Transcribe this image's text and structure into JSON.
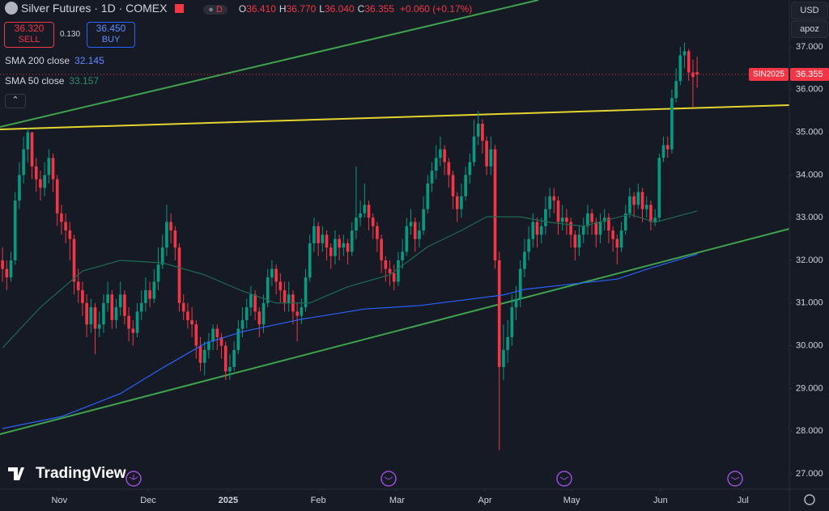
{
  "header": {
    "symbol": "Silver Futures · 1D · COMEX",
    "session": "D",
    "ohlc": [
      {
        "label": "O",
        "value": "36.410"
      },
      {
        "label": "H",
        "value": "36.770"
      },
      {
        "label": "L",
        "value": "36.040"
      },
      {
        "label": "C",
        "value": "36.355"
      }
    ],
    "change": "+0.060 (+0.17%)"
  },
  "trade": {
    "sell_price": "36.320",
    "sell": "SELL",
    "spread": "0.130",
    "buy_price": "36.450",
    "buy": "BUY"
  },
  "toolbar": {
    "currency": "USD",
    "scale": "apoz"
  },
  "brand": "TradingView",
  "chart_data": {
    "type": "candlestick",
    "up_color": "#089981",
    "down_color": "#f23645",
    "grid": false,
    "last_label": "SIN2025",
    "open": [
      32.0,
      31.8,
      31.6,
      32.0,
      33.4,
      34.0,
      34.6,
      35.0,
      34.2,
      33.9,
      33.7,
      34.0,
      34.4,
      33.9,
      33.1,
      32.9,
      32.7,
      32.5,
      31.5,
      31.3,
      31.0,
      30.5,
      30.9,
      30.4,
      30.5,
      31.0,
      31.2,
      30.6,
      30.9,
      31.2,
      30.7,
      30.4,
      30.3,
      30.8,
      31.0,
      31.3,
      31.1,
      31.5,
      31.9,
      32.3,
      32.9,
      32.7,
      32.3,
      31.0,
      30.8,
      30.6,
      30.5,
      30.0,
      29.6,
      29.9,
      30.1,
      30.4,
      30.2,
      30.0,
      29.4,
      29.5,
      29.9,
      30.4,
      30.6,
      30.9,
      31.2,
      30.8,
      30.5,
      31.0,
      31.6,
      31.8,
      31.5,
      31.3,
      31.0,
      31.2,
      30.8,
      30.7,
      30.9,
      31.6,
      32.4,
      32.8,
      32.4,
      32.6,
      32.3,
      32.1,
      32.5,
      32.3,
      32.4,
      32.2,
      32.7,
      33.0,
      33.1,
      33.3,
      33.0,
      32.8,
      32.5,
      32.0,
      31.8,
      31.7,
      31.5,
      32.0,
      32.2,
      32.8,
      32.9,
      32.5,
      32.7,
      33.2,
      33.8,
      34.1,
      34.4,
      34.6,
      34.3,
      34.0,
      33.5,
      33.2,
      33.5,
      34.0,
      34.3,
      34.9,
      35.2,
      34.8,
      34.2,
      34.6,
      32.0,
      29.5,
      29.9,
      30.2,
      30.9,
      31.1,
      31.8,
      32.2,
      32.5,
      32.9,
      32.6,
      32.8,
      33.2,
      33.5,
      33.4,
      32.9,
      33.0,
      32.9,
      32.6,
      32.3,
      32.6,
      32.8,
      33.1,
      32.9,
      32.6,
      32.9,
      33.0,
      32.7,
      32.5,
      32.3,
      32.7,
      33.1,
      33.5,
      33.3,
      33.6,
      33.2,
      33.3,
      32.9,
      33.0,
      34.4,
      34.7,
      34.6,
      35.8,
      36.2,
      36.8,
      36.9,
      36.4,
      36.41
    ],
    "high": [
      32.3,
      32.0,
      32.2,
      33.6,
      34.3,
      34.9,
      35.1,
      35.0,
      34.4,
      34.1,
      34.3,
      34.6,
      34.5,
      34.0,
      33.3,
      33.1,
      32.9,
      32.6,
      31.8,
      31.5,
      31.2,
      31.1,
      31.0,
      30.8,
      31.2,
      31.5,
      31.3,
      31.1,
      31.5,
      31.3,
      30.9,
      30.6,
      31.0,
      31.3,
      31.6,
      31.5,
      31.8,
      32.3,
      32.6,
      33.3,
      33.1,
      32.8,
      32.4,
      31.2,
      31.0,
      30.9,
      30.6,
      30.2,
      30.1,
      30.3,
      30.5,
      30.5,
      30.3,
      30.1,
      29.8,
      30.1,
      30.6,
      30.9,
      31.1,
      31.4,
      31.3,
      30.9,
      31.2,
      31.8,
      32.0,
      31.9,
      31.7,
      31.5,
      31.5,
      31.3,
      31.0,
      31.1,
      31.8,
      32.6,
      33.0,
      32.9,
      32.8,
      32.7,
      32.4,
      32.7,
      32.6,
      32.6,
      32.5,
      32.9,
      34.2,
      33.4,
      33.8,
      33.4,
      33.1,
      32.9,
      32.6,
      32.1,
      32.0,
      31.9,
      32.2,
      32.5,
      33.0,
      33.2,
      33.0,
      32.9,
      33.5,
      34.0,
      34.3,
      34.7,
      34.9,
      34.7,
      34.4,
      34.1,
      33.6,
      33.8,
      34.2,
      34.5,
      35.3,
      35.5,
      35.3,
      34.9,
      34.9,
      34.7,
      32.2,
      30.5,
      30.6,
      31.2,
      31.4,
      32.0,
      32.5,
      32.8,
      33.1,
      33.0,
      33.0,
      33.5,
      33.7,
      33.7,
      33.5,
      33.3,
      33.2,
      33.0,
      32.7,
      32.8,
      33.0,
      33.3,
      33.2,
      33.0,
      33.1,
      33.2,
      33.1,
      32.8,
      32.6,
      32.9,
      33.3,
      33.7,
      33.6,
      33.8,
      33.7,
      33.5,
      33.4,
      33.2,
      34.5,
      34.9,
      34.9,
      36.0,
      36.5,
      37.0,
      37.1,
      36.95,
      36.7,
      36.77
    ],
    "low": [
      31.5,
      31.3,
      31.5,
      31.9,
      33.2,
      33.8,
      34.3,
      33.9,
      33.6,
      33.4,
      33.5,
      33.8,
      33.6,
      32.8,
      32.6,
      32.4,
      32.0,
      31.2,
      31.0,
      30.7,
      30.2,
      30.3,
      29.8,
      30.2,
      30.3,
      30.8,
      30.4,
      30.4,
      30.7,
      30.5,
      30.1,
      30.0,
      30.2,
      30.6,
      30.8,
      30.9,
      31.0,
      31.3,
      31.8,
      32.1,
      32.4,
      32.0,
      30.8,
      30.6,
      30.4,
      30.2,
      29.7,
      29.4,
      29.3,
      29.7,
      29.9,
      29.9,
      29.7,
      29.2,
      29.2,
      29.4,
      29.8,
      30.2,
      30.4,
      30.7,
      30.6,
      30.2,
      30.3,
      30.9,
      31.4,
      31.2,
      31.0,
      30.8,
      30.8,
      30.5,
      30.1,
      30.5,
      30.8,
      31.5,
      32.2,
      32.1,
      32.2,
      32.0,
      31.8,
      31.9,
      32.0,
      32.1,
      31.9,
      32.1,
      32.5,
      32.8,
      33.0,
      32.7,
      32.5,
      32.2,
      31.7,
      31.5,
      31.4,
      31.3,
      31.4,
      31.8,
      32.1,
      32.6,
      32.2,
      32.3,
      32.6,
      33.1,
      33.6,
      33.9,
      34.2,
      34.0,
      33.7,
      33.2,
      32.9,
      33.0,
      33.4,
      33.8,
      34.2,
      34.7,
      34.5,
      34.0,
      34.0,
      31.8,
      27.55,
      29.2,
      29.6,
      30.0,
      30.6,
      30.9,
      31.6,
      32.0,
      32.3,
      32.3,
      32.4,
      32.6,
      33.0,
      33.1,
      32.6,
      32.7,
      32.6,
      32.3,
      32.0,
      32.1,
      32.4,
      32.6,
      32.6,
      32.3,
      32.4,
      32.7,
      32.4,
      32.2,
      31.9,
      32.2,
      32.6,
      33.0,
      33.0,
      33.2,
      32.9,
      33.0,
      32.7,
      32.8,
      32.9,
      34.3,
      34.4,
      34.5,
      35.7,
      36.1,
      36.5,
      36.2,
      35.6,
      36.04
    ],
    "close": [
      31.8,
      31.6,
      32.0,
      33.4,
      34.0,
      34.6,
      35.0,
      34.2,
      33.9,
      33.7,
      34.0,
      34.4,
      33.9,
      33.1,
      32.9,
      32.7,
      32.5,
      31.5,
      31.3,
      31.0,
      30.5,
      30.9,
      30.4,
      30.5,
      31.0,
      31.2,
      30.6,
      30.9,
      31.2,
      30.7,
      30.4,
      30.3,
      30.8,
      31.0,
      31.3,
      31.1,
      31.5,
      31.9,
      32.3,
      32.9,
      32.7,
      32.3,
      31.0,
      30.8,
      30.6,
      30.5,
      30.0,
      29.6,
      29.9,
      30.1,
      30.4,
      30.2,
      30.0,
      29.4,
      29.5,
      29.9,
      30.4,
      30.6,
      30.9,
      31.2,
      30.8,
      30.5,
      31.0,
      31.6,
      31.8,
      31.5,
      31.3,
      31.0,
      31.2,
      30.8,
      30.7,
      30.9,
      31.6,
      32.4,
      32.8,
      32.4,
      32.6,
      32.3,
      32.1,
      32.5,
      32.3,
      32.4,
      32.2,
      32.7,
      33.0,
      33.1,
      33.3,
      33.0,
      32.8,
      32.5,
      32.0,
      31.8,
      31.7,
      31.5,
      32.0,
      32.2,
      32.8,
      32.9,
      32.5,
      32.7,
      33.2,
      33.8,
      34.1,
      34.4,
      34.6,
      34.3,
      34.0,
      33.5,
      33.2,
      33.5,
      34.0,
      34.3,
      34.9,
      35.2,
      34.8,
      34.2,
      34.6,
      32.0,
      29.5,
      29.9,
      30.2,
      30.9,
      31.1,
      31.8,
      32.2,
      32.5,
      32.9,
      32.6,
      32.8,
      33.2,
      33.5,
      33.4,
      32.9,
      33.0,
      32.9,
      32.6,
      32.3,
      32.6,
      32.8,
      33.1,
      32.9,
      32.6,
      32.9,
      33.0,
      32.7,
      32.5,
      32.3,
      32.7,
      33.1,
      33.5,
      33.3,
      33.6,
      33.2,
      33.3,
      32.9,
      33.0,
      34.4,
      34.7,
      34.6,
      35.8,
      36.2,
      36.8,
      36.9,
      36.4,
      36.295,
      36.355
    ],
    "indicators": [
      {
        "name": "SMA 200 close",
        "color": "#2962ff",
        "x": [
          0,
          14,
          28,
          38,
          48,
          57,
          71,
          86,
          99,
          111,
          119,
          124,
          134,
          146,
          153,
          165
        ],
        "values": [
          28.06,
          28.34,
          28.88,
          29.48,
          30.05,
          30.33,
          30.62,
          30.86,
          30.94,
          31.09,
          31.19,
          31.32,
          31.43,
          31.56,
          31.79,
          32.145
        ]
      },
      {
        "name": "SMA 50 close",
        "color": "#1e6b52",
        "x": [
          0,
          9,
          19,
          28,
          38,
          48,
          57,
          65,
          73,
          82,
          92,
          101,
          109,
          115,
          123,
          130,
          138,
          149,
          155,
          165
        ],
        "values": [
          29.95,
          30.9,
          31.75,
          32.0,
          31.94,
          31.66,
          31.28,
          31.0,
          31.0,
          31.38,
          31.66,
          32.32,
          32.7,
          33.02,
          33.02,
          32.89,
          32.8,
          33.08,
          32.89,
          33.157
        ]
      }
    ],
    "xlim": [
      -0.6,
      186.9
    ],
    "xticks": [
      {
        "value": 13.5,
        "label": "Nov"
      },
      {
        "value": 34.6,
        "label": "Dec"
      },
      {
        "value": 53.6,
        "label": "2025"
      },
      {
        "value": 75,
        "label": "Feb"
      },
      {
        "value": 93.7,
        "label": "Mar"
      },
      {
        "value": 114.6,
        "label": "Apr"
      },
      {
        "value": 135.2,
        "label": "May"
      },
      {
        "value": 156.3,
        "label": "Jun"
      },
      {
        "value": 175.9,
        "label": "Jul"
      }
    ],
    "ylim": [
      26.64,
      38.098
    ],
    "yticks": [
      {
        "value": 27,
        "label": "27.000"
      },
      {
        "value": 28,
        "label": "28.000"
      },
      {
        "value": 29,
        "label": "29.000"
      },
      {
        "value": 30,
        "label": "30.000"
      },
      {
        "value": 31,
        "label": "31.000"
      },
      {
        "value": 32,
        "label": "32.000"
      },
      {
        "value": 33,
        "label": "33.000"
      },
      {
        "value": 34,
        "label": "34.000"
      },
      {
        "value": 35,
        "label": "35.000"
      },
      {
        "value": 36,
        "label": "36.000"
      },
      {
        "value": 37,
        "label": "37.000"
      }
    ]
  }
}
